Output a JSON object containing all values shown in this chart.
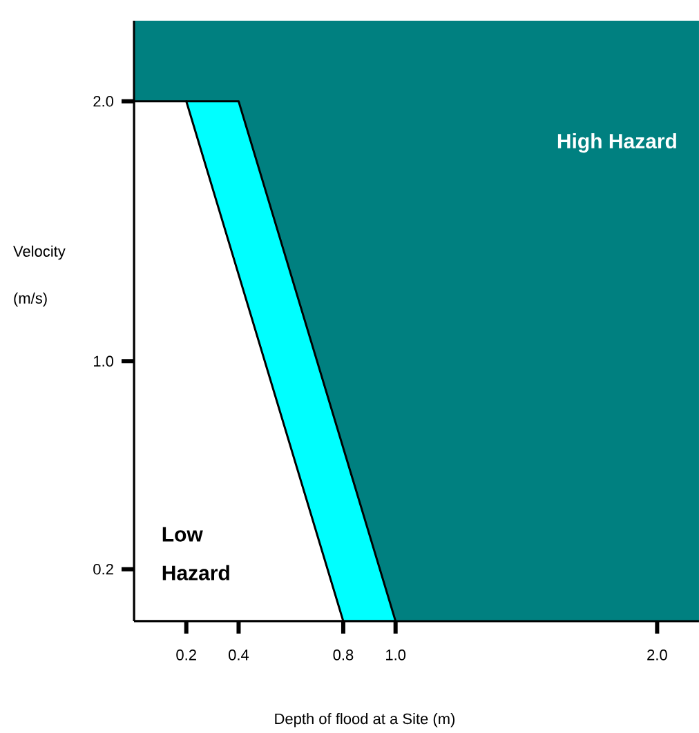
{
  "chart_data": {
    "type": "area",
    "xlabel": "Depth of flood at a Site (m)",
    "ylabel": "Velocity (m/s)",
    "xlim": [
      0,
      2.16
    ],
    "ylim": [
      0,
      2.31
    ],
    "xticks": [
      0.2,
      0.4,
      0.8,
      {
        "value": 1.0,
        "label": "1.0"
      },
      {
        "value": 2.0,
        "label": "2.0"
      }
    ],
    "yticks": [
      0.2,
      {
        "value": 1.0,
        "label": "1.0"
      },
      {
        "value": 2.0,
        "label": "2.0"
      }
    ],
    "grid": false,
    "bands": [
      {
        "axis": "y",
        "from": 0,
        "to": 2.31,
        "label": "High Hazard",
        "color": "#008080"
      }
    ],
    "series": [
      {
        "color": "#00ffff",
        "x": [
          0.2,
          0.4,
          1.0
        ],
        "values": [
          2.0,
          2.0,
          0
        ]
      },
      {
        "name": "Low Hazard",
        "color": "#ffffff",
        "x": [
          0,
          0.2,
          0.8
        ],
        "values": [
          2.0,
          2.0,
          0
        ]
      }
    ]
  }
}
